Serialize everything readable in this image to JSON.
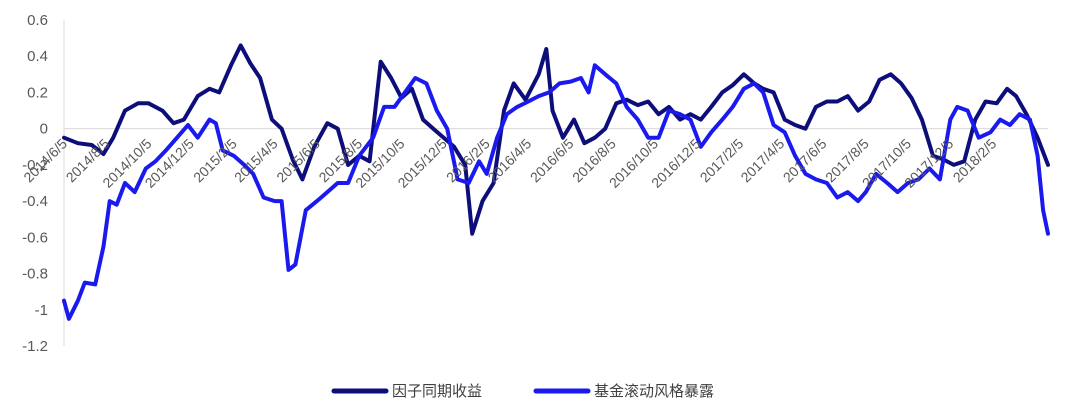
{
  "chart_data": {
    "type": "line",
    "title": "",
    "xlabel": "",
    "ylabel": "",
    "ylim": [
      -1.2,
      0.6
    ],
    "yticks": [
      0.6,
      0.4,
      0.2,
      0,
      -0.2,
      -0.4,
      -0.6,
      -0.8,
      -1,
      -1.2
    ],
    "ytick_labels": [
      "0.6",
      "0.4",
      "0.2",
      "0",
      "-0.2",
      "-0.4",
      "-0.6",
      "-0.8",
      "-1",
      "-1.2"
    ],
    "x_tick_labels": [
      "2014/6/5",
      "2014/8/5",
      "2014/10/5",
      "2014/12/5",
      "2015/2/5",
      "2015/4/5",
      "2015/6/5",
      "2015/8/5",
      "2015/10/5",
      "2015/12/5",
      "2016/2/5",
      "2016/4/5",
      "2016/6/5",
      "2016/8/5",
      "2016/10/5",
      "2016/12/5",
      "2017/2/5",
      "2017/4/5",
      "2017/6/5",
      "2017/8/5",
      "2017/10/5",
      "2017/12/5",
      "2018/2/5"
    ],
    "x_range": [
      "2014/6/5",
      "2018/4/25"
    ],
    "grid": false,
    "legend_position": "bottom",
    "series": [
      {
        "name": "因子同期收益",
        "color": "#0e0e7a",
        "points": [
          [
            "2014/6/5",
            -0.05
          ],
          [
            "2014/6/25",
            -0.08
          ],
          [
            "2014/7/15",
            -0.09
          ],
          [
            "2014/8/1",
            -0.14
          ],
          [
            "2014/8/15",
            -0.05
          ],
          [
            "2014/9/1",
            0.1
          ],
          [
            "2014/9/20",
            0.14
          ],
          [
            "2014/10/5",
            0.14
          ],
          [
            "2014/10/25",
            0.1
          ],
          [
            "2014/11/10",
            0.03
          ],
          [
            "2014/11/25",
            0.05
          ],
          [
            "2014/12/15",
            0.18
          ],
          [
            "2015/1/1",
            0.22
          ],
          [
            "2015/1/15",
            0.2
          ],
          [
            "2015/2/1",
            0.35
          ],
          [
            "2015/2/15",
            0.46
          ],
          [
            "2015/3/1",
            0.36
          ],
          [
            "2015/3/15",
            0.28
          ],
          [
            "2015/4/1",
            0.05
          ],
          [
            "2015/4/15",
            0.0
          ],
          [
            "2015/5/1",
            -0.17
          ],
          [
            "2015/5/15",
            -0.28
          ],
          [
            "2015/6/1",
            -0.1
          ],
          [
            "2015/6/20",
            0.03
          ],
          [
            "2015/7/5",
            0.0
          ],
          [
            "2015/7/20",
            -0.2
          ],
          [
            "2015/8/5",
            -0.15
          ],
          [
            "2015/8/20",
            -0.18
          ],
          [
            "2015/9/5",
            0.37
          ],
          [
            "2015/9/20",
            0.28
          ],
          [
            "2015/10/5",
            0.17
          ],
          [
            "2015/10/20",
            0.22
          ],
          [
            "2015/11/5",
            0.05
          ],
          [
            "2015/11/20",
            0.0
          ],
          [
            "2015/12/5",
            -0.05
          ],
          [
            "2015/12/20",
            -0.1
          ],
          [
            "2016/1/5",
            -0.2
          ],
          [
            "2016/1/15",
            -0.58
          ],
          [
            "2016/1/30",
            -0.4
          ],
          [
            "2016/2/15",
            -0.3
          ],
          [
            "2016/3/1",
            0.1
          ],
          [
            "2016/3/15",
            0.25
          ],
          [
            "2016/4/1",
            0.16
          ],
          [
            "2016/4/20",
            0.3
          ],
          [
            "2016/5/1",
            0.44
          ],
          [
            "2016/5/10",
            0.1
          ],
          [
            "2016/5/25",
            -0.05
          ],
          [
            "2016/6/10",
            0.05
          ],
          [
            "2016/6/25",
            -0.08
          ],
          [
            "2016/7/10",
            -0.05
          ],
          [
            "2016/7/25",
            0.0
          ],
          [
            "2016/8/10",
            0.14
          ],
          [
            "2016/8/25",
            0.16
          ],
          [
            "2016/9/10",
            0.13
          ],
          [
            "2016/9/25",
            0.15
          ],
          [
            "2016/10/10",
            0.08
          ],
          [
            "2016/10/25",
            0.12
          ],
          [
            "2016/11/10",
            0.05
          ],
          [
            "2016/11/25",
            0.08
          ],
          [
            "2016/12/10",
            0.05
          ],
          [
            "2016/12/25",
            0.12
          ],
          [
            "2017/1/10",
            0.2
          ],
          [
            "2017/1/25",
            0.24
          ],
          [
            "2017/2/10",
            0.3
          ],
          [
            "2017/2/25",
            0.25
          ],
          [
            "2017/3/10",
            0.22
          ],
          [
            "2017/3/25",
            0.2
          ],
          [
            "2017/4/10",
            0.05
          ],
          [
            "2017/4/25",
            0.02
          ],
          [
            "2017/5/10",
            0.0
          ],
          [
            "2017/5/25",
            0.12
          ],
          [
            "2017/6/10",
            0.15
          ],
          [
            "2017/6/25",
            0.15
          ],
          [
            "2017/7/10",
            0.18
          ],
          [
            "2017/7/25",
            0.1
          ],
          [
            "2017/8/10",
            0.15
          ],
          [
            "2017/8/25",
            0.27
          ],
          [
            "2017/9/10",
            0.3
          ],
          [
            "2017/9/25",
            0.25
          ],
          [
            "2017/10/10",
            0.17
          ],
          [
            "2017/10/25",
            0.05
          ],
          [
            "2017/11/10",
            -0.15
          ],
          [
            "2017/11/25",
            -0.17
          ],
          [
            "2017/12/10",
            -0.2
          ],
          [
            "2017/12/25",
            -0.18
          ],
          [
            "2018/1/10",
            0.05
          ],
          [
            "2018/1/25",
            0.15
          ],
          [
            "2018/2/10",
            0.14
          ],
          [
            "2018/2/25",
            0.22
          ],
          [
            "2018/3/10",
            0.18
          ],
          [
            "2018/3/25",
            0.08
          ],
          [
            "2018/4/10",
            -0.05
          ],
          [
            "2018/4/25",
            -0.2
          ]
        ]
      },
      {
        "name": "基金滚动风格暴露",
        "color": "#1a1aee",
        "points": [
          [
            "2014/6/5",
            -0.95
          ],
          [
            "2014/6/12",
            -1.05
          ],
          [
            "2014/6/25",
            -0.95
          ],
          [
            "2014/7/5",
            -0.85
          ],
          [
            "2014/7/20",
            -0.86
          ],
          [
            "2014/8/1",
            -0.65
          ],
          [
            "2014/8/10",
            -0.4
          ],
          [
            "2014/8/20",
            -0.42
          ],
          [
            "2014/9/1",
            -0.3
          ],
          [
            "2014/9/15",
            -0.35
          ],
          [
            "2014/10/1",
            -0.22
          ],
          [
            "2014/10/15",
            -0.18
          ],
          [
            "2014/10/30",
            -0.12
          ],
          [
            "2014/11/15",
            -0.05
          ],
          [
            "2014/12/1",
            0.02
          ],
          [
            "2014/12/15",
            -0.05
          ],
          [
            "2015/1/1",
            0.05
          ],
          [
            "2015/1/10",
            0.03
          ],
          [
            "2015/1/20",
            -0.12
          ],
          [
            "2015/2/5",
            -0.15
          ],
          [
            "2015/2/20",
            -0.2
          ],
          [
            "2015/3/5",
            -0.25
          ],
          [
            "2015/3/20",
            -0.38
          ],
          [
            "2015/4/5",
            -0.4
          ],
          [
            "2015/4/15",
            -0.4
          ],
          [
            "2015/4/25",
            -0.78
          ],
          [
            "2015/5/5",
            -0.75
          ],
          [
            "2015/5/20",
            -0.45
          ],
          [
            "2015/6/5",
            -0.4
          ],
          [
            "2015/6/20",
            -0.35
          ],
          [
            "2015/7/5",
            -0.3
          ],
          [
            "2015/7/20",
            -0.3
          ],
          [
            "2015/8/5",
            -0.15
          ],
          [
            "2015/8/25",
            -0.05
          ],
          [
            "2015/9/10",
            0.12
          ],
          [
            "2015/9/25",
            0.12
          ],
          [
            "2015/10/10",
            0.2
          ],
          [
            "2015/10/25",
            0.28
          ],
          [
            "2015/11/10",
            0.25
          ],
          [
            "2015/11/25",
            0.1
          ],
          [
            "2015/12/10",
            0.0
          ],
          [
            "2015/12/25",
            -0.28
          ],
          [
            "2016/1/10",
            -0.3
          ],
          [
            "2016/1/25",
            -0.18
          ],
          [
            "2016/2/5",
            -0.25
          ],
          [
            "2016/2/20",
            -0.05
          ],
          [
            "2016/3/5",
            0.08
          ],
          [
            "2016/3/20",
            0.12
          ],
          [
            "2016/4/5",
            0.15
          ],
          [
            "2016/4/20",
            0.18
          ],
          [
            "2016/5/5",
            0.2
          ],
          [
            "2016/5/20",
            0.25
          ],
          [
            "2016/6/5",
            0.26
          ],
          [
            "2016/6/20",
            0.28
          ],
          [
            "2016/7/1",
            0.2
          ],
          [
            "2016/7/10",
            0.35
          ],
          [
            "2016/7/25",
            0.3
          ],
          [
            "2016/8/10",
            0.25
          ],
          [
            "2016/8/25",
            0.12
          ],
          [
            "2016/9/10",
            0.05
          ],
          [
            "2016/9/25",
            -0.05
          ],
          [
            "2016/10/10",
            -0.05
          ],
          [
            "2016/10/25",
            0.1
          ],
          [
            "2016/11/10",
            0.08
          ],
          [
            "2016/11/25",
            0.05
          ],
          [
            "2016/12/10",
            -0.1
          ],
          [
            "2016/12/25",
            -0.02
          ],
          [
            "2017/1/10",
            0.05
          ],
          [
            "2017/1/25",
            0.12
          ],
          [
            "2017/2/10",
            0.22
          ],
          [
            "2017/2/25",
            0.25
          ],
          [
            "2017/3/10",
            0.2
          ],
          [
            "2017/3/25",
            0.02
          ],
          [
            "2017/4/10",
            -0.02
          ],
          [
            "2017/4/25",
            -0.15
          ],
          [
            "2017/5/10",
            -0.25
          ],
          [
            "2017/5/25",
            -0.28
          ],
          [
            "2017/6/10",
            -0.3
          ],
          [
            "2017/6/25",
            -0.38
          ],
          [
            "2017/7/10",
            -0.35
          ],
          [
            "2017/7/25",
            -0.4
          ],
          [
            "2017/8/5",
            -0.35
          ],
          [
            "2017/8/20",
            -0.25
          ],
          [
            "2017/9/5",
            -0.3
          ],
          [
            "2017/9/20",
            -0.35
          ],
          [
            "2017/10/5",
            -0.3
          ],
          [
            "2017/10/20",
            -0.28
          ],
          [
            "2017/11/5",
            -0.22
          ],
          [
            "2017/11/20",
            -0.28
          ],
          [
            "2017/12/5",
            0.05
          ],
          [
            "2017/12/15",
            0.12
          ],
          [
            "2017/12/30",
            0.1
          ],
          [
            "2018/1/15",
            -0.05
          ],
          [
            "2018/2/1",
            -0.02
          ],
          [
            "2018/2/15",
            0.05
          ],
          [
            "2018/3/1",
            0.02
          ],
          [
            "2018/3/15",
            0.08
          ],
          [
            "2018/3/30",
            0.05
          ],
          [
            "2018/4/10",
            -0.15
          ],
          [
            "2018/4/18",
            -0.45
          ],
          [
            "2018/4/25",
            -0.58
          ]
        ]
      }
    ]
  }
}
